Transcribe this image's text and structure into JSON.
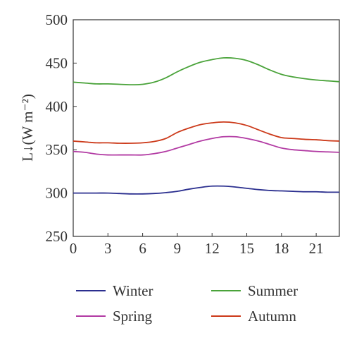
{
  "chart_data": {
    "type": "line",
    "title": "",
    "xlabel": "",
    "ylabel": "L↓(W m⁻²)",
    "xlim": [
      0,
      23
    ],
    "ylim": [
      250,
      500
    ],
    "xticks": [
      0,
      3,
      6,
      9,
      12,
      15,
      18,
      21
    ],
    "yticks": [
      250,
      300,
      350,
      400,
      450,
      500
    ],
    "grid": false,
    "legend_position": "bottom",
    "series": [
      {
        "name": "Winter",
        "color": "#2b2f8f",
        "x": [
          0,
          1,
          2,
          3,
          4,
          5,
          6,
          7,
          8,
          9,
          10,
          11,
          12,
          13,
          14,
          15,
          16,
          17,
          18,
          19,
          20,
          21,
          22,
          23
        ],
        "y": [
          300,
          300,
          300,
          300,
          299.5,
          299,
          299,
          299.5,
          300.5,
          302,
          304.5,
          306.5,
          308,
          308,
          307,
          305.5,
          304,
          303,
          302.5,
          302,
          301.5,
          301.5,
          301,
          301
        ]
      },
      {
        "name": "Summer",
        "color": "#4aa33a",
        "x": [
          0,
          1,
          2,
          3,
          4,
          5,
          6,
          7,
          8,
          9,
          10,
          11,
          12,
          13,
          14,
          15,
          16,
          17,
          18,
          19,
          20,
          21,
          22,
          23
        ],
        "y": [
          428,
          427,
          426,
          426,
          425.5,
          425,
          425.5,
          428,
          433,
          440,
          446,
          451,
          454,
          456,
          455.5,
          453,
          448,
          442,
          437,
          434,
          432,
          430.5,
          429.5,
          428.5
        ]
      },
      {
        "name": "Spring",
        "color": "#b23aa3",
        "x": [
          0,
          1,
          2,
          3,
          4,
          5,
          6,
          7,
          8,
          9,
          10,
          11,
          12,
          13,
          14,
          15,
          16,
          17,
          18,
          19,
          20,
          21,
          22,
          23
        ],
        "y": [
          348,
          347,
          345,
          344,
          344,
          344,
          344,
          345.5,
          348,
          352,
          356,
          360,
          363,
          365,
          365,
          363,
          360,
          356,
          352,
          350,
          349,
          348,
          347.5,
          347
        ]
      },
      {
        "name": "Autumn",
        "color": "#cc3a1a",
        "x": [
          0,
          1,
          2,
          3,
          4,
          5,
          6,
          7,
          8,
          9,
          10,
          11,
          12,
          13,
          14,
          15,
          16,
          17,
          18,
          19,
          20,
          21,
          22,
          23
        ],
        "y": [
          360,
          359,
          358,
          358,
          357.5,
          357.5,
          358,
          359.5,
          363,
          370,
          375,
          379,
          381,
          382,
          381,
          378,
          373,
          368,
          364,
          363,
          362,
          361.5,
          360.5,
          360
        ]
      }
    ]
  }
}
